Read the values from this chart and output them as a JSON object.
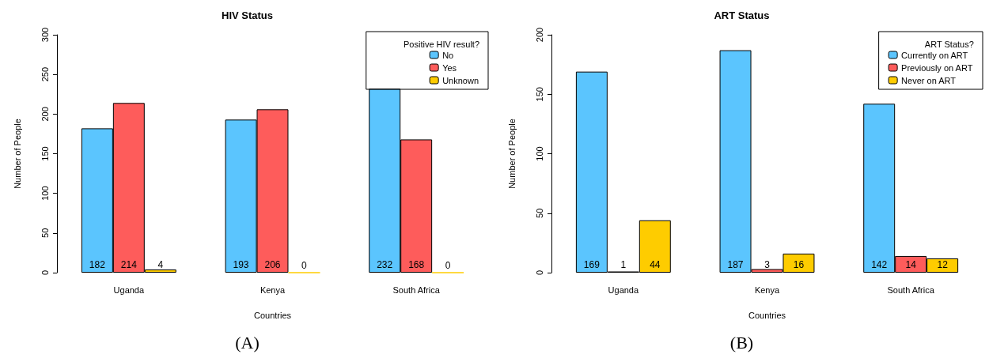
{
  "chart_data": [
    {
      "type": "bar",
      "title": "HIV Status",
      "xlabel": "Countries",
      "ylabel": "Number of People",
      "legend_title": "Positive HIV result?",
      "annotations": [
        "(A)"
      ],
      "categories": [
        "Uganda",
        "Kenya",
        "South Africa"
      ],
      "series": [
        {
          "name": "No",
          "color": "#5bc5fe",
          "values": [
            182,
            193,
            232
          ]
        },
        {
          "name": "Yes",
          "color": "#fe5c5b",
          "values": [
            214,
            206,
            168
          ]
        },
        {
          "name": "Unknown",
          "color": "#fecc00",
          "values": [
            4,
            0,
            0
          ]
        }
      ],
      "ylim": [
        0,
        300
      ],
      "yticks": [
        0,
        50,
        100,
        150,
        200,
        250,
        300
      ],
      "grid": false,
      "legend": "top right",
      "data_labels": true
    },
    {
      "type": "bar",
      "title": "ART Status",
      "xlabel": "Countries",
      "ylabel": "Number of People",
      "legend_title": "ART Status?",
      "annotations": [
        "(B)"
      ],
      "categories": [
        "Uganda",
        "Kenya",
        "South Africa"
      ],
      "series": [
        {
          "name": "Currently on ART",
          "color": "#5bc5fe",
          "values": [
            169,
            187,
            142
          ]
        },
        {
          "name": "Previously on ART",
          "color": "#fe5c5b",
          "values": [
            1,
            3,
            14
          ]
        },
        {
          "name": "Never on ART",
          "color": "#fecc00",
          "values": [
            44,
            16,
            12
          ]
        }
      ],
      "ylim": [
        0,
        200
      ],
      "yticks": [
        0,
        50,
        100,
        150,
        200
      ],
      "grid": false,
      "legend": "top right",
      "data_labels": true
    }
  ]
}
